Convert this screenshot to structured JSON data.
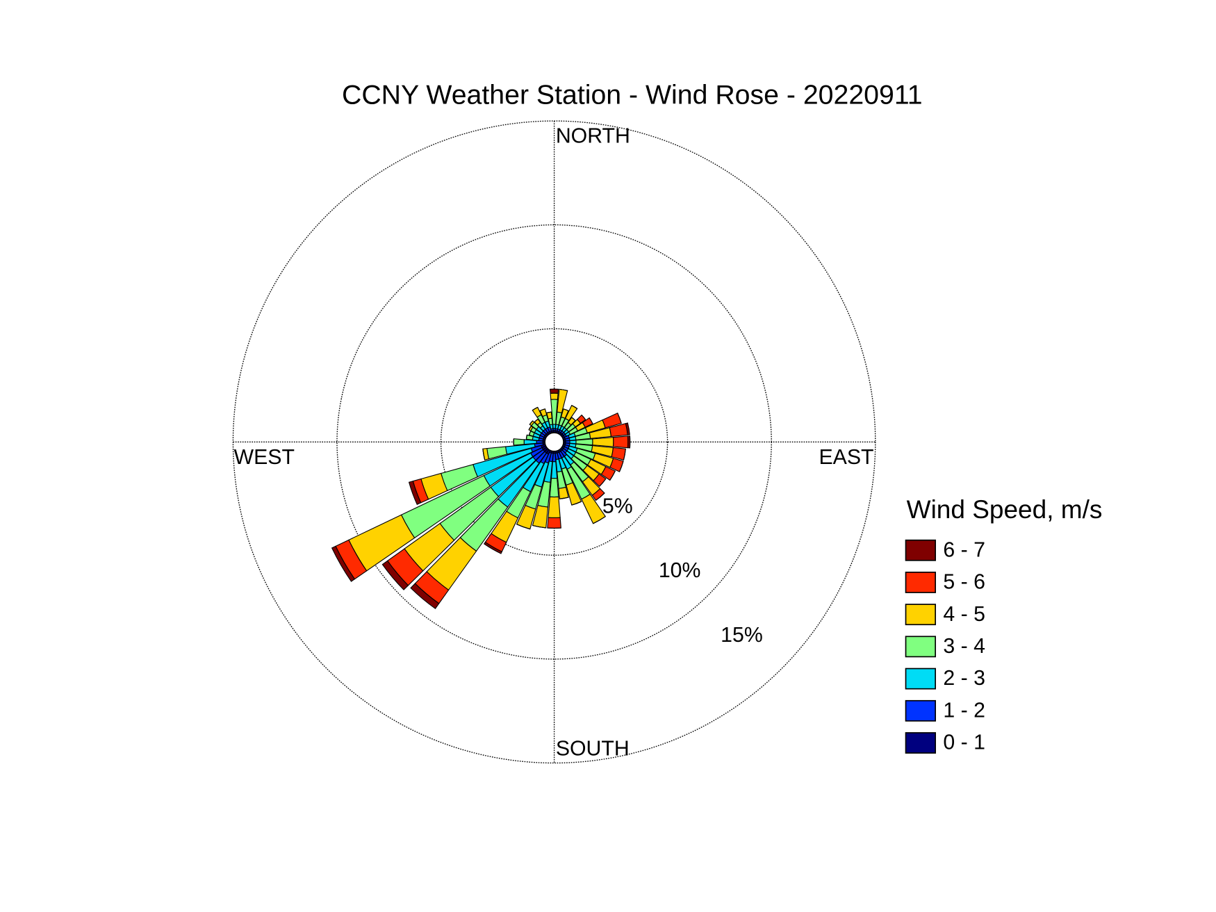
{
  "chart_data": {
    "type": "windrose",
    "title": "CCNY Weather Station - Wind Rose - 20220911",
    "compass_labels": {
      "north": "NORTH",
      "east": "EAST",
      "south": "SOUTH",
      "west": "WEST"
    },
    "legend_title": "Wind Speed, m/s",
    "x": [
      0,
      10,
      20,
      30,
      40,
      50,
      60,
      70,
      80,
      90,
      100,
      110,
      120,
      130,
      140,
      150,
      160,
      170,
      180,
      190,
      200,
      210,
      220,
      230,
      240,
      250,
      260,
      270,
      280,
      290,
      300,
      310,
      320,
      330,
      340,
      350
    ],
    "rlim": [
      0,
      15
    ],
    "rticks": [
      {
        "value": 5,
        "label": "5%"
      },
      {
        "value": 10,
        "label": "10%"
      },
      {
        "value": 15,
        "label": "15%"
      }
    ],
    "grid": true,
    "series": [
      {
        "name": "0 - 1",
        "color": "#00007f",
        "values": [
          0.1,
          0.1,
          0.1,
          0.1,
          0.1,
          0.1,
          0.1,
          0.1,
          0.1,
          0.1,
          0.1,
          0.1,
          0.1,
          0.1,
          0.1,
          0.1,
          0.1,
          0.1,
          0.1,
          0.1,
          0.1,
          0.2,
          0.2,
          0.2,
          0.2,
          0.2,
          0.1,
          0.1,
          0.1,
          0.1,
          0.1,
          0.1,
          0.1,
          0.1,
          0.1,
          0.1
        ]
      },
      {
        "name": "1 - 2",
        "color": "#0033ff",
        "values": [
          0.1,
          0.1,
          0.1,
          0.1,
          0.1,
          0.1,
          0.1,
          0.2,
          0.2,
          0.2,
          0.2,
          0.2,
          0.2,
          0.2,
          0.3,
          0.3,
          0.3,
          0.3,
          0.4,
          0.4,
          0.5,
          0.5,
          0.6,
          0.6,
          0.6,
          0.5,
          0.4,
          0.3,
          0.2,
          0.2,
          0.2,
          0.2,
          0.2,
          0.2,
          0.2,
          0.1
        ]
      },
      {
        "name": "2 - 3",
        "color": "#00dcf5",
        "values": [
          0.2,
          0.2,
          0.2,
          0.2,
          0.2,
          0.2,
          0.2,
          0.3,
          0.3,
          0.3,
          0.3,
          0.4,
          0.4,
          0.4,
          0.5,
          0.6,
          0.5,
          0.6,
          0.8,
          1.0,
          1.2,
          1.5,
          2.6,
          2.5,
          2.5,
          2.9,
          1.4,
          0.6,
          0.3,
          0.3,
          0.3,
          0.3,
          0.2,
          0.3,
          0.3,
          0.2
        ]
      },
      {
        "name": "3 - 4",
        "color": "#80ff80",
        "values": [
          1.2,
          0.6,
          0.4,
          0.4,
          0.3,
          0.4,
          0.4,
          0.6,
          0.7,
          0.8,
          0.8,
          0.9,
          0.8,
          0.8,
          1.0,
          1.6,
          0.8,
          0.8,
          0.9,
          1.2,
          1.1,
          1.4,
          2.6,
          3.0,
          4.4,
          1.6,
          0.9,
          0.5,
          0.3,
          0.2,
          0.2,
          0.3,
          0.2,
          0.4,
          0.3,
          0.3
        ]
      },
      {
        "name": "4 - 5",
        "color": "#ffd200",
        "values": [
          0.3,
          1.1,
          0.4,
          0.7,
          0.3,
          0.3,
          0.4,
          0.9,
          1.0,
          1.0,
          1.0,
          0.9,
          0.8,
          0.7,
          0.8,
          1.3,
          1.0,
          0.5,
          1.0,
          1.0,
          1.0,
          1.3,
          2.3,
          2.1,
          2.8,
          1.0,
          0.2,
          0,
          0,
          0,
          0.1,
          0.1,
          0.2,
          0.4,
          0.3,
          0.3
        ]
      },
      {
        "name": "5 - 6",
        "color": "#ff2a00",
        "values": [
          0,
          0,
          0,
          0,
          0,
          0.3,
          0.4,
          0.8,
          0.8,
          0.7,
          0.6,
          0.5,
          0.5,
          0.4,
          0.3,
          0,
          0,
          0,
          0.5,
          0,
          0,
          0.5,
          0.8,
          1.0,
          0.7,
          0.4,
          0,
          0,
          0,
          0,
          0,
          0,
          0,
          0,
          0,
          0
        ]
      },
      {
        "name": "6 - 7",
        "color": "#7f0000",
        "values": [
          0.2,
          0,
          0,
          0,
          0,
          0,
          0,
          0,
          0.1,
          0.1,
          0,
          0,
          0,
          0,
          0,
          0,
          0,
          0,
          0,
          0,
          0,
          0.1,
          0.3,
          0.3,
          0.2,
          0.2,
          0,
          0,
          0,
          0,
          0,
          0,
          0,
          0,
          0,
          0
        ]
      }
    ]
  }
}
